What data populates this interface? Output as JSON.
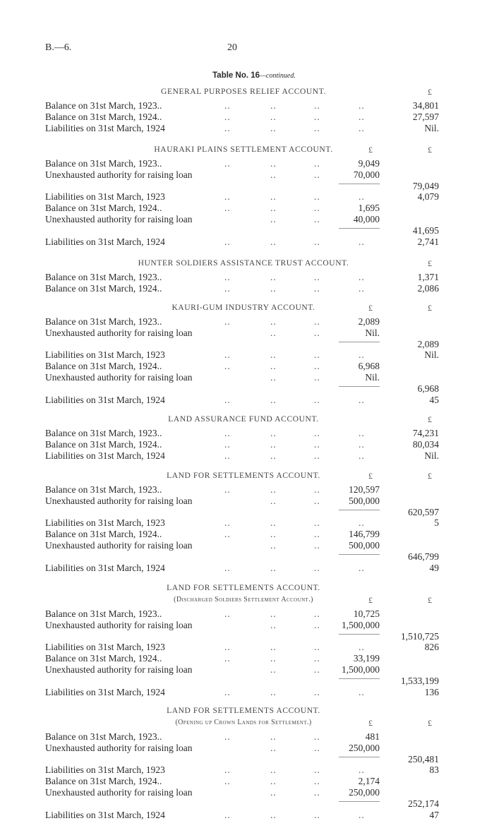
{
  "page": {
    "reference": "B.—6.",
    "number": "20",
    "table_title": "Table No. 16",
    "table_suffix": "—continued."
  },
  "sections": [
    {
      "heading": "GENERAL PURPOSES RELIEF ACCOUNT.",
      "col1_header": "",
      "col2_header": "£",
      "rows": [
        {
          "label": "Balance on 31st March, 1923..",
          "col1": "",
          "col2": "34,801"
        },
        {
          "label": "Balance on 31st March, 1924..",
          "col1": "",
          "col2": "27,597"
        },
        {
          "label": "Liabilities on 31st March, 1924",
          "col1": "",
          "col2": "Nil."
        }
      ]
    },
    {
      "heading": "HAURAKI PLAINS SETTLEMENT ACCOUNT.",
      "col1_header": "£",
      "col2_header": "£",
      "rows": [
        {
          "label": "Balance on 31st March, 1923..",
          "col1": "9,049",
          "col2": ""
        },
        {
          "label": "Unexhausted authority for raising loan",
          "col1": "70,000",
          "col2": ""
        },
        {
          "label": "",
          "col1": "",
          "col2": "79,049",
          "total": true
        },
        {
          "label": "Liabilities on 31st March, 1923",
          "col1": "",
          "col2": "4,079"
        },
        {
          "label": "Balance on 31st March, 1924..",
          "col1": "1,695",
          "col2": ""
        },
        {
          "label": "Unexhausted authority for raising loan",
          "col1": "40,000",
          "col2": ""
        },
        {
          "label": "",
          "col1": "",
          "col2": "41,695",
          "total": true
        },
        {
          "label": "Liabilities on 31st March, 1924",
          "col1": "",
          "col2": "2,741"
        }
      ]
    },
    {
      "heading": "HUNTER SOLDIERS ASSISTANCE TRUST ACCOUNT.",
      "col1_header": "",
      "col2_header": "£",
      "rows": [
        {
          "label": "Balance on 31st March, 1923..",
          "col1": "",
          "col2": "1,371"
        },
        {
          "label": "Balance on 31st March, 1924..",
          "col1": "",
          "col2": "2,086"
        }
      ]
    },
    {
      "heading": "KAURI-GUM INDUSTRY ACCOUNT.",
      "col1_header": "£",
      "col2_header": "£",
      "rows": [
        {
          "label": "Balance on 31st March, 1923..",
          "col1": "2,089",
          "col2": ""
        },
        {
          "label": "Unexhausted authority for raising loan",
          "col1": "Nil.",
          "col2": ""
        },
        {
          "label": "",
          "col1": "",
          "col2": "2,089",
          "total": true
        },
        {
          "label": "Liabilities on 31st March, 1923",
          "col1": "",
          "col2": "Nil."
        },
        {
          "label": "Balance on 31st March, 1924..",
          "col1": "6,968",
          "col2": ""
        },
        {
          "label": "Unexhausted authority for raising loan",
          "col1": "Nil.",
          "col2": ""
        },
        {
          "label": "",
          "col1": "",
          "col2": "6,968",
          "total": true
        },
        {
          "label": "Liabilities on 31st March, 1924",
          "col1": "",
          "col2": "45"
        }
      ]
    },
    {
      "heading": "LAND ASSURANCE FUND ACCOUNT.",
      "col1_header": "",
      "col2_header": "£",
      "rows": [
        {
          "label": "Balance on 31st March, 1923..",
          "col1": "",
          "col2": "74,231"
        },
        {
          "label": "Balance on 31st March, 1924..",
          "col1": "",
          "col2": "80,034"
        },
        {
          "label": "Liabilities on 31st March, 1924",
          "col1": "",
          "col2": "Nil."
        }
      ]
    },
    {
      "heading": "LAND FOR SETTLEMENTS ACCOUNT.",
      "col1_header": "£",
      "col2_header": "£",
      "rows": [
        {
          "label": "Balance on 31st March, 1923..",
          "col1": "120,597",
          "col2": ""
        },
        {
          "label": "Unexhausted authority for raising loan",
          "col1": "500,000",
          "col2": ""
        },
        {
          "label": "",
          "col1": "",
          "col2": "620,597",
          "total": true
        },
        {
          "label": "Liabilities on 31st March, 1923",
          "col1": "",
          "col2": "5"
        },
        {
          "label": "Balance on 31st March, 1924..",
          "col1": "146,799",
          "col2": ""
        },
        {
          "label": "Unexhausted authority for raising loan",
          "col1": "500,000",
          "col2": ""
        },
        {
          "label": "",
          "col1": "",
          "col2": "646,799",
          "total": true
        },
        {
          "label": "Liabilities on 31st March, 1924",
          "col1": "",
          "col2": "49"
        }
      ]
    },
    {
      "heading": "LAND FOR SETTLEMENTS ACCOUNT.",
      "subheading": "(Discharged Soldiers Settlement Account.)",
      "col1_header": "£",
      "col2_header": "£",
      "rows": [
        {
          "label": "Balance on 31st March, 1923..",
          "col1": "10,725",
          "col2": ""
        },
        {
          "label": "Unexhausted authority for raising loan",
          "col1": "1,500,000",
          "col2": ""
        },
        {
          "label": "",
          "col1": "",
          "col2": "1,510,725",
          "total": true
        },
        {
          "label": "Liabilities on 31st March, 1923",
          "col1": "",
          "col2": "826"
        },
        {
          "label": "Balance on 31st March, 1924..",
          "col1": "33,199",
          "col2": ""
        },
        {
          "label": "Unexhausted authority for raising loan",
          "col1": "1,500,000",
          "col2": ""
        },
        {
          "label": "",
          "col1": "",
          "col2": "1,533,199",
          "total": true
        },
        {
          "label": "Liabilities on 31st March, 1924",
          "col1": "",
          "col2": "136"
        }
      ]
    },
    {
      "heading": "LAND FOR SETTLEMENTS ACCOUNT.",
      "subheading": "(Opening up Crown Lands for Settlement.)",
      "col1_header": "£",
      "col2_header": "£",
      "rows": [
        {
          "label": "Balance on 31st March, 1923..",
          "col1": "481",
          "col2": ""
        },
        {
          "label": "Unexhausted authority for raising loan",
          "col1": "250,000",
          "col2": ""
        },
        {
          "label": "",
          "col1": "",
          "col2": "250,481",
          "total": true
        },
        {
          "label": "Liabilities on 31st March, 1923",
          "col1": "",
          "col2": "83"
        },
        {
          "label": "Balance on 31st March, 1924..",
          "col1": "2,174",
          "col2": ""
        },
        {
          "label": "Unexhausted authority for raising loan",
          "col1": "250,000",
          "col2": ""
        },
        {
          "label": "",
          "col1": "",
          "col2": "252,174",
          "total": true
        },
        {
          "label": "Liabilities on 31st March, 1924",
          "col1": "",
          "col2": "47"
        }
      ]
    }
  ]
}
